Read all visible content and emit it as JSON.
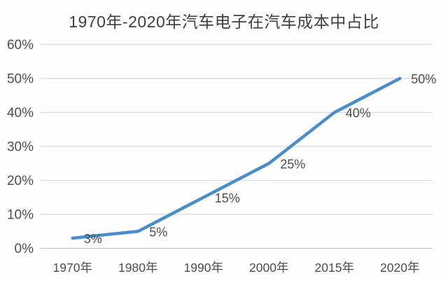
{
  "chart_data": {
    "type": "line",
    "title": "1970年-2020年汽车电子在汽车成本中占比",
    "categories": [
      "1970年",
      "1980年",
      "1990年",
      "2000年",
      "2015年",
      "2020年"
    ],
    "series": [
      {
        "name": "汽车电子在汽车成本中占比",
        "values": [
          3,
          5,
          15,
          25,
          40,
          50
        ]
      }
    ],
    "data_labels": [
      "3%",
      "5%",
      "15%",
      "25%",
      "40%",
      "50%"
    ],
    "y_tick_labels": [
      "0%",
      "10%",
      "20%",
      "30%",
      "40%",
      "50%",
      "60%"
    ],
    "y_tick_values": [
      0,
      10,
      20,
      30,
      40,
      50,
      60
    ],
    "ylim": [
      0,
      60
    ],
    "xlabel": "",
    "ylabel": "",
    "grid": true,
    "legend": "none",
    "colors": {
      "line": "#4a8dc8",
      "gridline": "#d9d9d9",
      "axis_line": "#c6c6c6",
      "label_text": "#4d4d4d",
      "title_text": "#3f3f3f",
      "background": "#fefefe"
    }
  }
}
